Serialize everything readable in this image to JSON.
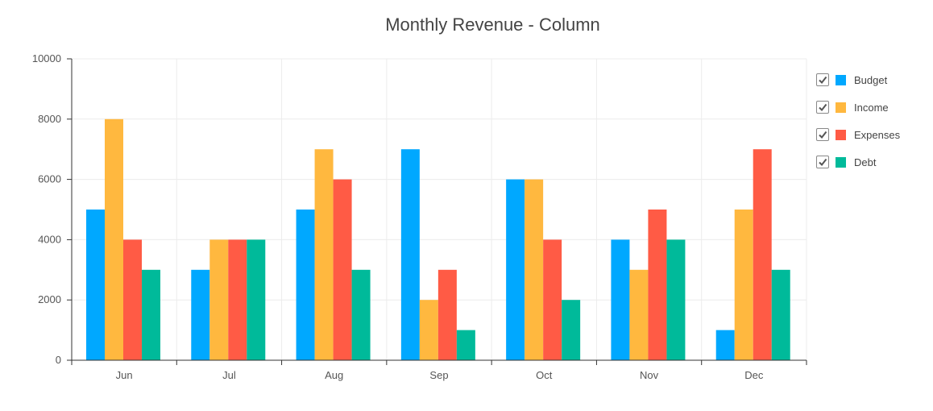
{
  "chart_data": {
    "type": "bar",
    "title": "Monthly Revenue - Column",
    "categories": [
      "Jun",
      "Jul",
      "Aug",
      "Sep",
      "Oct",
      "Nov",
      "Dec"
    ],
    "series": [
      {
        "name": "Budget",
        "color": "#00a8ff",
        "values": [
          5000,
          3000,
          5000,
          7000,
          6000,
          4000,
          1000
        ]
      },
      {
        "name": "Income",
        "color": "#ffb83f",
        "values": [
          8000,
          4000,
          7000,
          2000,
          6000,
          3000,
          5000
        ]
      },
      {
        "name": "Expenses",
        "color": "#ff5b45",
        "values": [
          4000,
          4000,
          6000,
          3000,
          4000,
          5000,
          7000
        ]
      },
      {
        "name": "Debt",
        "color": "#00ba9a",
        "values": [
          3000,
          4000,
          3000,
          1000,
          2000,
          4000,
          3000
        ]
      }
    ],
    "yticks": [
      "0",
      "2000",
      "4000",
      "6000",
      "8000",
      "10000"
    ],
    "ylim": [
      0,
      10000
    ],
    "grid": true,
    "legend_position": "right",
    "legend_checked": true
  }
}
